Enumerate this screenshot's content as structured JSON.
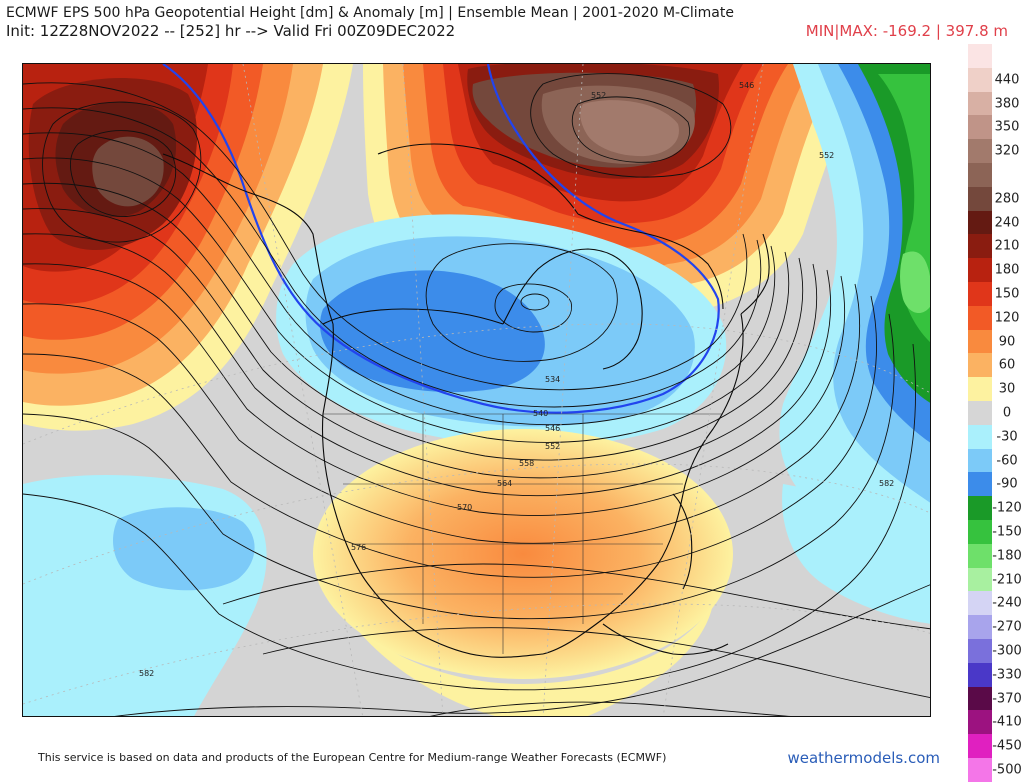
{
  "header": {
    "title": "ECMWF EPS 500 hPa Geopotential Height [dm] & Anomaly [m] | Ensemble Mean | 2001-2020 M-Climate",
    "subtitle": "Init: 12Z28NOV2022 -- [252] hr --> Valid Fri 00Z09DEC2022",
    "minmax": "MIN|MAX: -169.2 | 397.8 m"
  },
  "colors": {
    "neutral": "#d4d4d4",
    "brown_core": "#6f4e44",
    "red": "#c8301a",
    "orange": "#f07a3a",
    "light_orange": "#f7a85c",
    "yellow": "#fbe59a",
    "light_blue": "#bfeefc",
    "blue": "#3e8fe8",
    "green": "#2fc23a",
    "zero_line": "#2244ee",
    "link": "#2a5db8",
    "minmax": "#e0404a"
  },
  "legend": [
    {
      "label": "",
      "color": "#fbe4e4"
    },
    {
      "label": "440",
      "color": "#efd0c8"
    },
    {
      "label": "380",
      "color": "#d8b0a4"
    },
    {
      "label": "350",
      "color": "#c09488"
    },
    {
      "label": "320",
      "color": "#a27a6c"
    },
    {
      "label": "",
      "color": "#8c6456"
    },
    {
      "label": "280",
      "color": "#74483c"
    },
    {
      "label": "240",
      "color": "#641a12"
    },
    {
      "label": "210",
      "color": "#8a1c10"
    },
    {
      "label": "180",
      "color": "#b82210"
    },
    {
      "label": "150",
      "color": "#e0361a"
    },
    {
      "label": "120",
      "color": "#f25a26"
    },
    {
      "label": "90",
      "color": "#f98a3e"
    },
    {
      "label": "60",
      "color": "#fbb262"
    },
    {
      "label": "30",
      "color": "#fdf2a0"
    },
    {
      "label": "0",
      "color": "#d6d6d6"
    },
    {
      "label": "-30",
      "color": "#aaf0fc"
    },
    {
      "label": "-60",
      "color": "#7ccaf8"
    },
    {
      "label": "-90",
      "color": "#3c8cea"
    },
    {
      "label": "-120",
      "color": "#1a9a28"
    },
    {
      "label": "-150",
      "color": "#36c23e"
    },
    {
      "label": "-180",
      "color": "#6ee06a"
    },
    {
      "label": "-210",
      "color": "#a8f0a0"
    },
    {
      "label": "-240",
      "color": "#d4d4f4"
    },
    {
      "label": "-270",
      "color": "#a8a4ec"
    },
    {
      "label": "-300",
      "color": "#7a70dc"
    },
    {
      "label": "-330",
      "color": "#4a38c8"
    },
    {
      "label": "-370",
      "color": "#5a0a48"
    },
    {
      "label": "-410",
      "color": "#9c1280"
    },
    {
      "label": "-450",
      "color": "#e020c0"
    },
    {
      "label": "-500",
      "color": "#f476e8"
    }
  ],
  "contour_labels": [
    "552",
    "546",
    "552",
    "582",
    "582",
    "534",
    "540",
    "546",
    "552",
    "558",
    "564",
    "570",
    "576"
  ],
  "footer": {
    "attribution": "This service is based on data and products of the European Centre for Medium-range Weather Forecasts (ECMWF)",
    "site": "weathermodels.com"
  }
}
